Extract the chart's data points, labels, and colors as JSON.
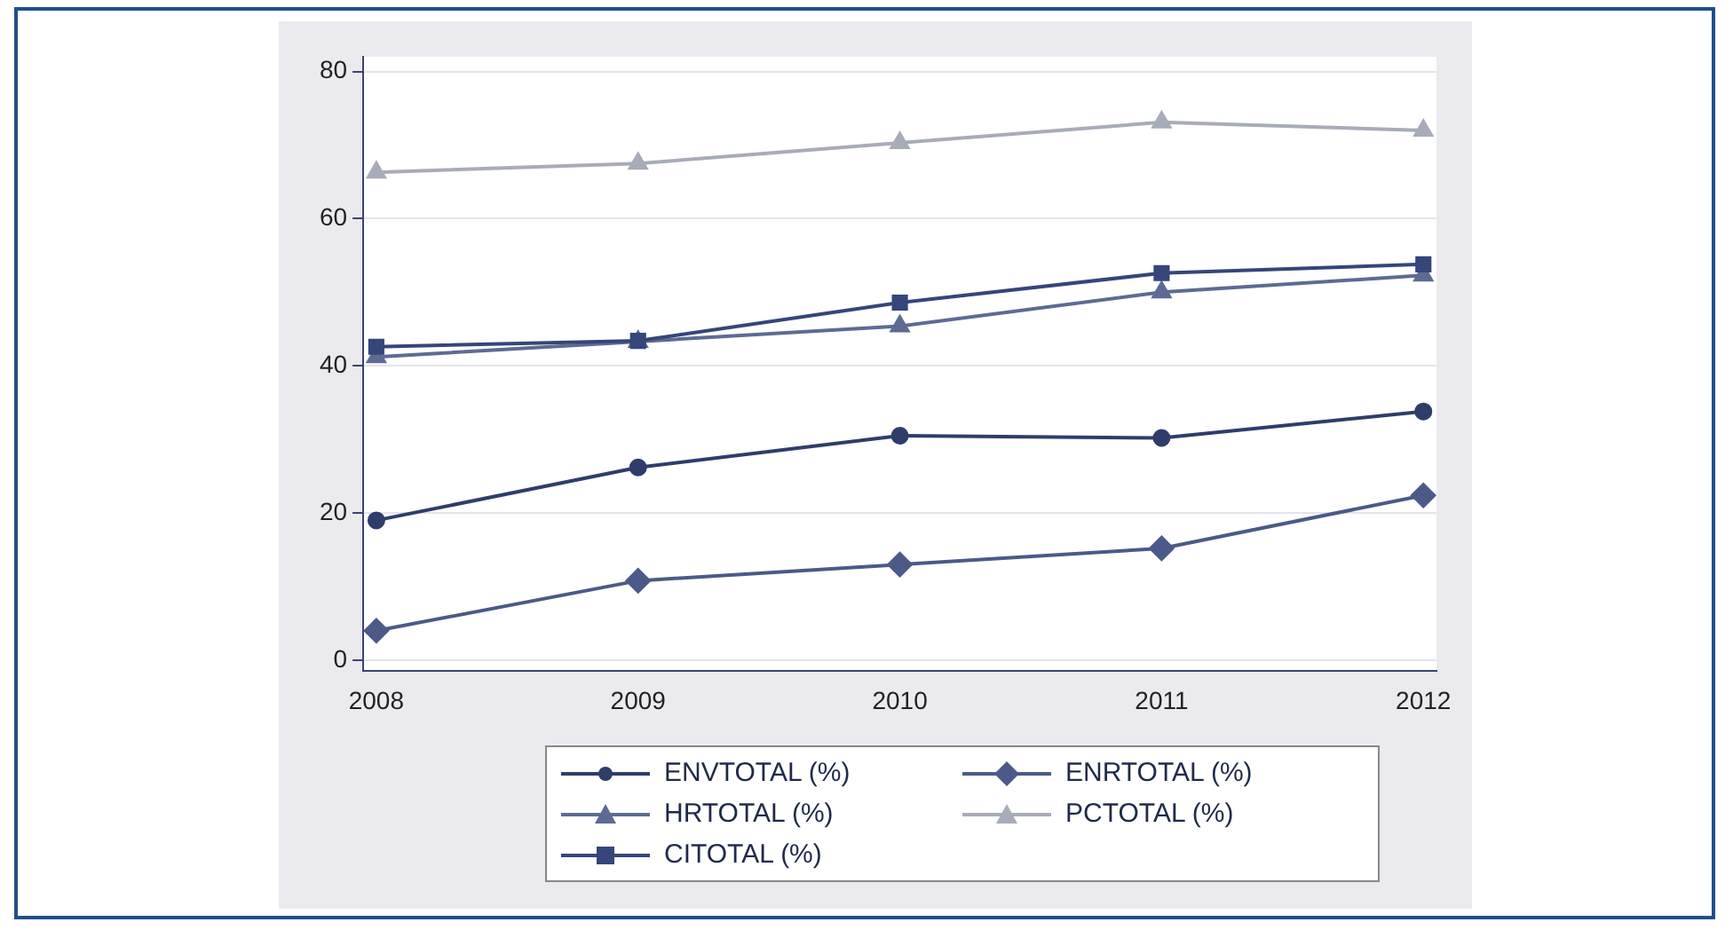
{
  "chart_data": {
    "type": "line",
    "x": [
      2008,
      2009,
      2010,
      2011,
      2012
    ],
    "series": [
      {
        "name": "ENVTOTAL (%)",
        "color": "#2f3d6b",
        "marker": "circle",
        "values": [
          19,
          26.2,
          30.5,
          30.2,
          33.8
        ]
      },
      {
        "name": "ENRTOTAL (%)",
        "color": "#4b5a88",
        "marker": "diamond",
        "values": [
          4,
          10.8,
          13,
          15.2,
          22.4
        ]
      },
      {
        "name": "HRTOTAL (%)",
        "color": "#5d6b94",
        "marker": "triangle",
        "values": [
          41.2,
          43.3,
          45.4,
          50,
          52.3
        ]
      },
      {
        "name": "PCTOTAL (%)",
        "color": "#a8acb8",
        "marker": "triangle",
        "values": [
          66.3,
          67.5,
          70.3,
          73.1,
          72
        ]
      },
      {
        "name": "CITOTAL (%)",
        "color": "#34467a",
        "marker": "square",
        "values": [
          42.6,
          43.4,
          48.6,
          52.6,
          53.8
        ]
      }
    ],
    "xlim": [
      2007.95,
      2012.05
    ],
    "xticks": [
      2008,
      2009,
      2010,
      2011,
      2012
    ],
    "ylim": [
      -1.5,
      82
    ],
    "yticks": [
      0,
      20,
      40,
      60,
      80
    ],
    "grid": "y",
    "legend": "bottom",
    "line_style": "solid"
  }
}
